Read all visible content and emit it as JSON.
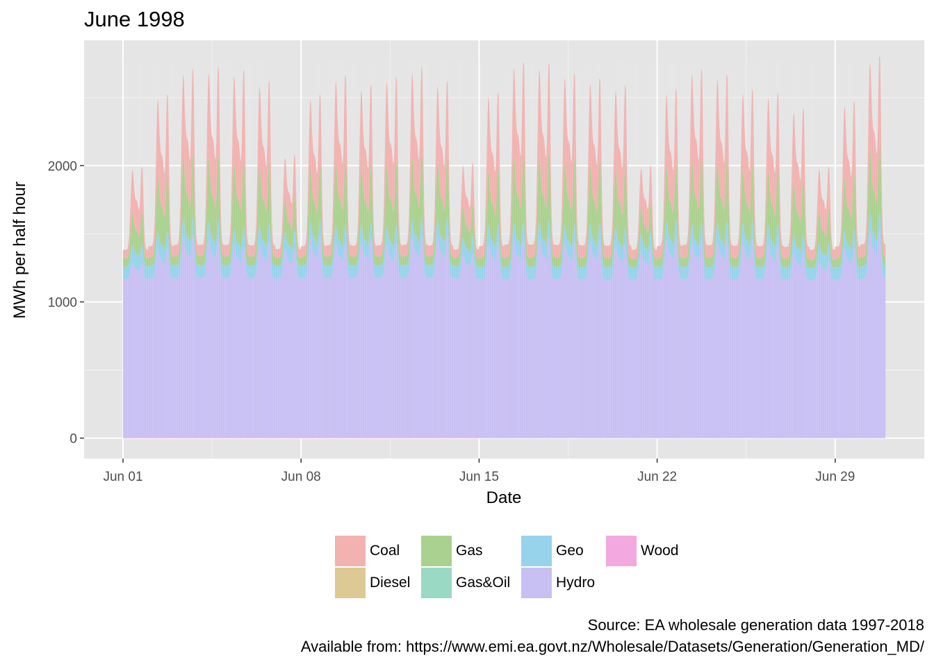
{
  "chart_data": {
    "type": "area",
    "stacked": true,
    "title": "June 1998",
    "xlabel": "Date",
    "ylabel": "MWh per half hour",
    "x_range": [
      "1998-06-01",
      "1998-06-30"
    ],
    "x_ticks": [
      "Jun 01",
      "Jun 08",
      "Jun 15",
      "Jun 22",
      "Jun 29"
    ],
    "ylim": [
      -150,
      2920
    ],
    "y_ticks": [
      0,
      1000,
      2000
    ],
    "resolution": "half-hourly",
    "grid": true,
    "legend_position": "bottom",
    "stack_order": [
      "Wood",
      "Hydro",
      "Geo",
      "Gas&Oil",
      "Gas",
      "Diesel",
      "Coal"
    ],
    "series": [
      {
        "name": "Coal",
        "color": "#F1B2B0"
      },
      {
        "name": "Diesel",
        "color": "#DCC994"
      },
      {
        "name": "Gas",
        "color": "#AAD18F"
      },
      {
        "name": "Gas&Oil",
        "color": "#9AD9C3"
      },
      {
        "name": "Geo",
        "color": "#97D3EA"
      },
      {
        "name": "Hydro",
        "color": "#C8BFF3"
      },
      {
        "name": "Wood",
        "color": "#F1A9E0"
      }
    ],
    "daily_peaks": [
      {
        "date": "1998-06-01",
        "total": 1990,
        "hydro": 1280
      },
      {
        "date": "1998-06-02",
        "total": 2520,
        "hydro": 1380
      },
      {
        "date": "1998-06-03",
        "total": 2710,
        "hydro": 1480
      },
      {
        "date": "1998-06-04",
        "total": 2720,
        "hydro": 1460
      },
      {
        "date": "1998-06-05",
        "total": 2700,
        "hydro": 1400
      },
      {
        "date": "1998-06-06",
        "total": 2620,
        "hydro": 1430
      },
      {
        "date": "1998-06-07",
        "total": 2080,
        "hydro": 1380
      },
      {
        "date": "1998-06-08",
        "total": 2520,
        "hydro": 1460
      },
      {
        "date": "1998-06-09",
        "total": 2660,
        "hydro": 1430
      },
      {
        "date": "1998-06-10",
        "total": 2590,
        "hydro": 1440
      },
      {
        "date": "1998-06-11",
        "total": 2650,
        "hydro": 1420
      },
      {
        "date": "1998-06-12",
        "total": 2720,
        "hydro": 1480
      },
      {
        "date": "1998-06-13",
        "total": 2620,
        "hydro": 1480
      },
      {
        "date": "1998-06-14",
        "total": 2020,
        "hydro": 1340
      },
      {
        "date": "1998-06-15",
        "total": 2540,
        "hydro": 1440
      },
      {
        "date": "1998-06-16",
        "total": 2760,
        "hydro": 1460
      },
      {
        "date": "1998-06-17",
        "total": 2750,
        "hydro": 1470
      },
      {
        "date": "1998-06-18",
        "total": 2680,
        "hydro": 1440
      },
      {
        "date": "1998-06-19",
        "total": 2640,
        "hydro": 1450
      },
      {
        "date": "1998-06-20",
        "total": 2590,
        "hydro": 1420
      },
      {
        "date": "1998-06-21",
        "total": 2000,
        "hydro": 1380
      },
      {
        "date": "1998-06-22",
        "total": 2560,
        "hydro": 1470
      },
      {
        "date": "1998-06-23",
        "total": 2710,
        "hydro": 1450
      },
      {
        "date": "1998-06-24",
        "total": 2670,
        "hydro": 1460
      },
      {
        "date": "1998-06-25",
        "total": 2560,
        "hydro": 1460
      },
      {
        "date": "1998-06-26",
        "total": 2530,
        "hydro": 1440
      },
      {
        "date": "1998-06-27",
        "total": 2420,
        "hydro": 1370
      },
      {
        "date": "1998-06-28",
        "total": 1990,
        "hydro": 1300
      },
      {
        "date": "1998-06-29",
        "total": 2470,
        "hydro": 1400
      },
      {
        "date": "1998-06-30",
        "total": 2800,
        "hydro": 1530
      }
    ],
    "typical_overnight_trough_total": 1350
  },
  "caption": {
    "line1": "Source: EA wholesale generation data 1997-2018",
    "line2": "Available from: https://www.emi.ea.govt.nz/Wholesale/Datasets/Generation/Generation_MD/"
  }
}
